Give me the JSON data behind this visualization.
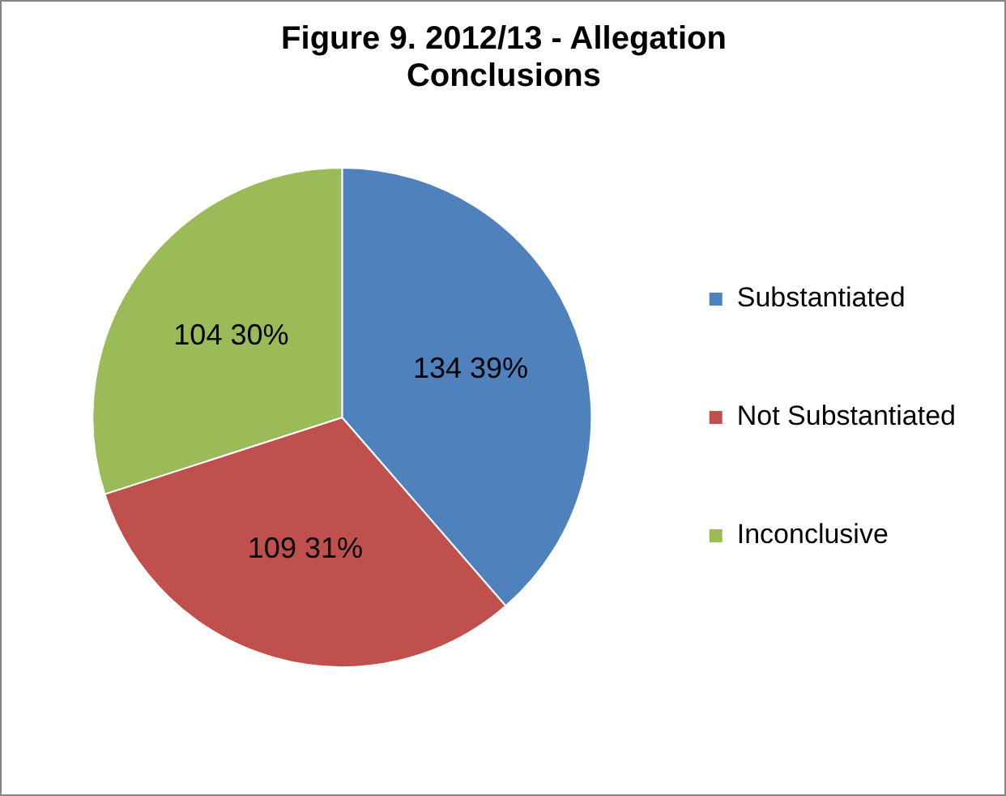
{
  "chart_data": {
    "type": "pie",
    "title": "Figure 9. 2012/13 - Allegation Conclusions",
    "categories": [
      "Substantiated",
      "Not Substantiated",
      "Inconclusive"
    ],
    "values": [
      134,
      109,
      104
    ],
    "colors": [
      "#4f81bd",
      "#c0504d",
      "#9bbb59"
    ],
    "value_labels": [
      "134 39%",
      "109 31%",
      "104 30%"
    ],
    "legend": "right"
  }
}
